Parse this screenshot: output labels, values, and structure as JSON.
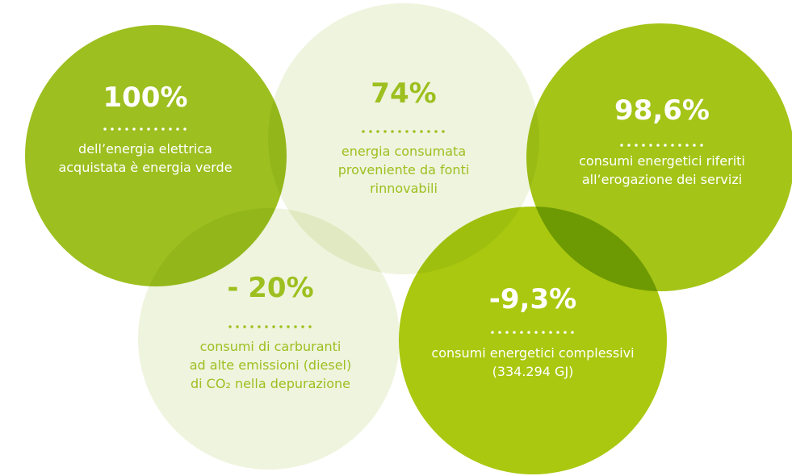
{
  "items": [
    {
      "value": "100%",
      "lines": [
        "dell’energia elettrica",
        "acquistata è energia verde"
      ]
    },
    {
      "value": "74%",
      "lines": [
        "energia consumata",
        "proveniente da fonti",
        "rinnovabili"
      ]
    },
    {
      "value": "98,6%",
      "lines": [
        "consumi energetici riferiti",
        "all’erogazione dei servizi"
      ]
    },
    {
      "value": "- 20%",
      "lines": [
        "consumi di carburanti",
        "ad alte emissioni (diesel)",
        "di CO₂ nella depurazione"
      ]
    },
    {
      "value": "-9,3%",
      "lines": [
        "consumi energetici complessivi",
        "(334.294 GJ)"
      ]
    }
  ]
}
